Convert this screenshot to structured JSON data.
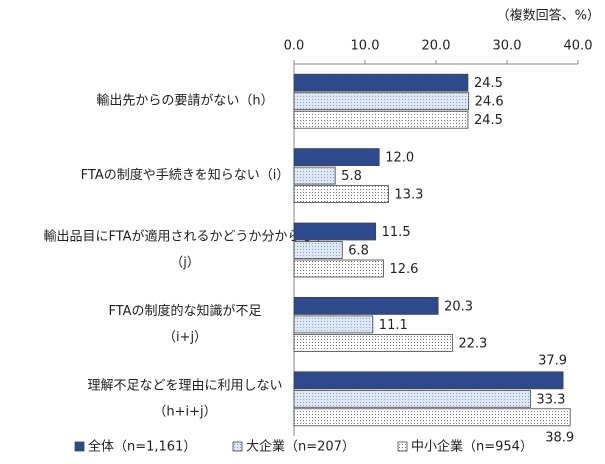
{
  "chart_data": {
    "type": "bar",
    "orientation": "horizontal",
    "unit_label": "（複数回答、%）",
    "categories": [
      [
        "輸出先からの要請がない（h）"
      ],
      [
        "FTAの制度や手続きを知らない（i）"
      ],
      [
        "輸出品目にFTAが適用されるかどうか分からない",
        "（j）"
      ],
      [
        "FTAの制度的な知識が不足",
        "（i+j）"
      ],
      [
        "理解不足などを理由に利用しない",
        "（h+i+j）"
      ]
    ],
    "series": [
      {
        "name": "全体（n=1,161）",
        "color": "#2e4a8c",
        "values": [
          24.5,
          12,
          11.5,
          20.3,
          37.9
        ],
        "value_labels": [
          "24.5",
          "12.0",
          "11.5",
          "20.3",
          "37.9"
        ]
      },
      {
        "name": "大企業（n=207）",
        "color": "#dde7f5",
        "values": [
          24.6,
          5.8,
          6.8,
          11.1,
          33.3
        ],
        "value_labels": [
          "24.6",
          "5.8",
          "6.8",
          "11.1",
          "33.3"
        ]
      },
      {
        "name": "中小企業（n=954）",
        "color": "#ffffff",
        "values": [
          24.5,
          13.3,
          12.6,
          22.3,
          38.9
        ],
        "value_labels": [
          "24.5",
          "13.3",
          "12.6",
          "22.3",
          "38.9"
        ]
      }
    ],
    "xlim": [
      0,
      40
    ],
    "xticks": [
      {
        "value": 0,
        "label": "0.0"
      },
      {
        "value": 10,
        "label": "10.0"
      },
      {
        "value": 20,
        "label": "20.0"
      },
      {
        "value": 30,
        "label": "30.0"
      },
      {
        "value": 40,
        "label": "40.0"
      }
    ]
  }
}
